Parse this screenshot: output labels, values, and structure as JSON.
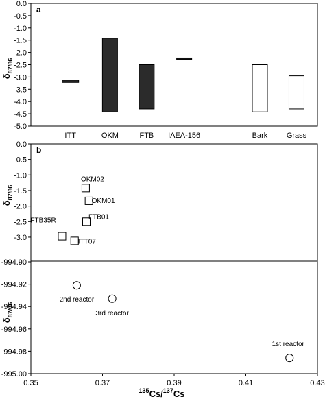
{
  "chart_data": [
    {
      "panel": "a",
      "type": "bar",
      "range_bars": true,
      "ylabel": "δ87/86",
      "ylim": [
        -5.0,
        0.0
      ],
      "yticks": [
        "0.0",
        "-0.5",
        "-1.0",
        "-1.5",
        "-2.0",
        "-2.5",
        "-3.0",
        "-3.5",
        "-4.0",
        "-4.5",
        "-5.0"
      ],
      "categories": [
        "ITT",
        "OKM",
        "FTB",
        "IAEA-156",
        "Bark",
        "Grass"
      ],
      "ranges": [
        {
          "category": "ITT",
          "low": -3.22,
          "high": -3.12,
          "fill": "#222222"
        },
        {
          "category": "OKM",
          "low": -4.42,
          "high": -1.42,
          "fill": "#2b2b2b"
        },
        {
          "category": "FTB",
          "low": -4.3,
          "high": -2.5,
          "fill": "#2b2b2b"
        },
        {
          "category": "IAEA-156",
          "low": -2.28,
          "high": -2.22,
          "fill": "#111111"
        },
        {
          "category": "Bark",
          "low": -4.42,
          "high": -2.5,
          "fill": "#ffffff"
        },
        {
          "category": "Grass",
          "low": -4.3,
          "high": -2.95,
          "fill": "#ffffff"
        }
      ]
    },
    {
      "panel": "b",
      "type": "scatter",
      "broken_y_axis": true,
      "ylabel": "δ87/86",
      "xlabel_parts": {
        "sup1": "135",
        "base1": "Cs/",
        "sup2": "137",
        "base2": "Cs"
      },
      "xlim": [
        0.35,
        0.43
      ],
      "xticks": [
        "0.35",
        "0.37",
        "0.39",
        "0.41",
        "0.43"
      ],
      "upper": {
        "ylim": [
          -3.2,
          0.0
        ],
        "yticks": [
          "0.0",
          "-0.5",
          "-1.0",
          "-1.5",
          "-2.0",
          "-2.5",
          "-3.0"
        ],
        "marker": "square",
        "points": [
          {
            "label": "OKM02",
            "x": 0.3653,
            "y": -1.42
          },
          {
            "label": "OKM01",
            "x": 0.3662,
            "y": -1.83
          },
          {
            "label": "FTB01",
            "x": 0.3655,
            "y": -2.5
          },
          {
            "label": "FTB35R",
            "x": 0.3587,
            "y": -2.97
          },
          {
            "label": "ITT07",
            "x": 0.3622,
            "y": -3.12
          }
        ]
      },
      "lower": {
        "ylim": [
          -995.0,
          -994.9
        ],
        "yticks": [
          "-994.90",
          "-994.92",
          "-994.94",
          "-994.96",
          "-994.98",
          "-995.00"
        ],
        "marker": "circle",
        "points": [
          {
            "label": "2nd reactor",
            "x": 0.3628,
            "y": -994.921
          },
          {
            "label": "3rd reactor",
            "x": 0.3727,
            "y": -994.933
          },
          {
            "label": "1st reactor",
            "x": 0.4222,
            "y": -994.986
          }
        ]
      }
    }
  ]
}
